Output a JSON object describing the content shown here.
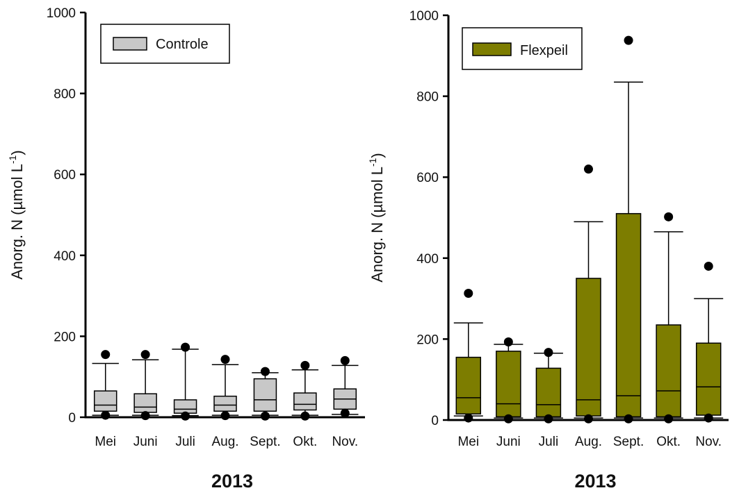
{
  "chart_data": [
    {
      "type": "box",
      "legend": "Controle",
      "legend_position": "top-left",
      "fill_color": "#c8c8c8",
      "ylabel": "Anorg. N (µmol L-1)",
      "xlabel": "2013",
      "ylim": [
        0,
        1000
      ],
      "yticks": [
        "0",
        "200",
        "400",
        "600",
        "800",
        "1000"
      ],
      "categories": [
        "Mei",
        "Juni",
        "Juli",
        "Aug.",
        "Sept.",
        "Okt.",
        "Nov."
      ],
      "boxes": [
        {
          "whisker_low": 5,
          "q1": 15,
          "median": 30,
          "q3": 65,
          "whisker_high": 133,
          "outliers_high": [
            155
          ],
          "outliers_low": [
            5
          ]
        },
        {
          "whisker_low": 5,
          "q1": 12,
          "median": 25,
          "q3": 58,
          "whisker_high": 142,
          "outliers_high": [
            155
          ],
          "outliers_low": [
            4
          ]
        },
        {
          "whisker_low": 4,
          "q1": 10,
          "median": 20,
          "q3": 43,
          "whisker_high": 168,
          "outliers_high": [
            173
          ],
          "outliers_low": [
            3
          ]
        },
        {
          "whisker_low": 5,
          "q1": 15,
          "median": 30,
          "q3": 52,
          "whisker_high": 130,
          "outliers_high": [
            143
          ],
          "outliers_low": [
            4
          ]
        },
        {
          "whisker_low": 5,
          "q1": 15,
          "median": 43,
          "q3": 95,
          "whisker_high": 110,
          "outliers_high": [
            113
          ],
          "outliers_low": [
            3
          ]
        },
        {
          "whisker_low": 5,
          "q1": 18,
          "median": 32,
          "q3": 60,
          "whisker_high": 117,
          "outliers_high": [
            128
          ],
          "outliers_low": [
            3
          ]
        },
        {
          "whisker_low": 7,
          "q1": 20,
          "median": 45,
          "q3": 70,
          "whisker_high": 128,
          "outliers_high": [
            140
          ],
          "outliers_low": [
            10
          ]
        }
      ]
    },
    {
      "type": "box",
      "legend": "Flexpeil",
      "legend_position": "top-left",
      "fill_color": "#7d7d00",
      "ylabel": "Anorg. N (µmol L-1)",
      "xlabel": "2013",
      "ylim": [
        0,
        1000
      ],
      "yticks": [
        "0",
        "200",
        "400",
        "600",
        "800",
        "1000"
      ],
      "categories": [
        "Mei",
        "Juni",
        "Juli",
        "Aug.",
        "Sept.",
        "Okt.",
        "Nov."
      ],
      "boxes": [
        {
          "whisker_low": 10,
          "q1": 15,
          "median": 55,
          "q3": 155,
          "whisker_high": 240,
          "outliers_high": [
            313
          ],
          "outliers_low": [
            5
          ]
        },
        {
          "whisker_low": 5,
          "q1": 8,
          "median": 40,
          "q3": 170,
          "whisker_high": 187,
          "outliers_high": [
            193
          ],
          "outliers_low": [
            3
          ]
        },
        {
          "whisker_low": 5,
          "q1": 8,
          "median": 38,
          "q3": 128,
          "whisker_high": 165,
          "outliers_high": [
            167
          ],
          "outliers_low": [
            3
          ]
        },
        {
          "whisker_low": 5,
          "q1": 10,
          "median": 50,
          "q3": 350,
          "whisker_high": 490,
          "outliers_high": [
            620
          ],
          "outliers_low": [
            3
          ]
        },
        {
          "whisker_low": 5,
          "q1": 8,
          "median": 60,
          "q3": 510,
          "whisker_high": 835,
          "outliers_high": [
            938
          ],
          "outliers_low": [
            3
          ]
        },
        {
          "whisker_low": 5,
          "q1": 8,
          "median": 72,
          "q3": 235,
          "whisker_high": 465,
          "outliers_high": [
            502
          ],
          "outliers_low": [
            3
          ]
        },
        {
          "whisker_low": 5,
          "q1": 12,
          "median": 82,
          "q3": 190,
          "whisker_high": 300,
          "outliers_high": [
            380
          ],
          "outliers_low": [
            5
          ]
        }
      ]
    }
  ]
}
